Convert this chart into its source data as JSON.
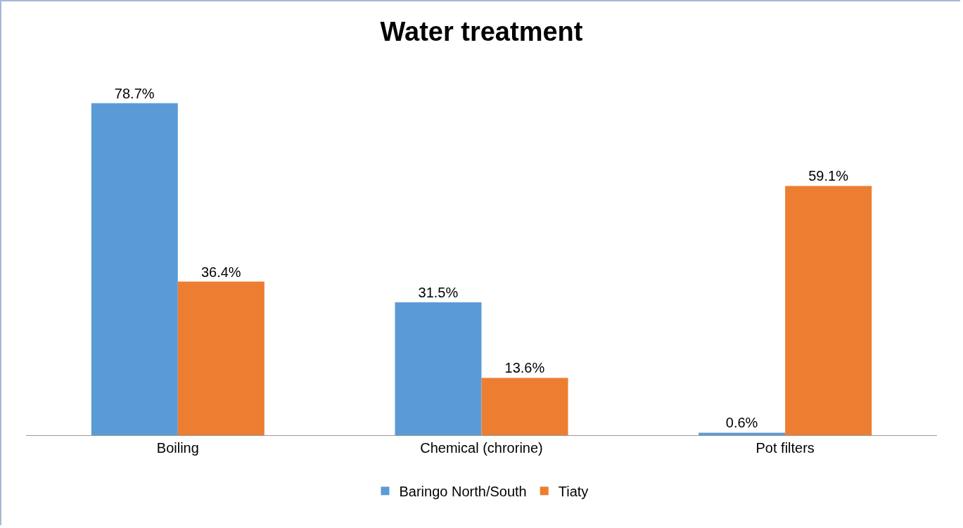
{
  "chart_data": {
    "type": "bar",
    "title": "Water treatment",
    "categories": [
      "Boiling",
      "Chemical (chrorine)",
      "Pot filters"
    ],
    "series": [
      {
        "name": "Baringo North/South",
        "color": "#5b9bd5",
        "values": [
          78.7,
          31.5,
          0.6
        ],
        "value_labels": [
          "78.7%",
          "31.5%",
          "0.6%"
        ]
      },
      {
        "name": "Tiaty",
        "color": "#ed7d31",
        "values": [
          36.4,
          13.6,
          59.1
        ],
        "value_labels": [
          "36.4%",
          "13.6%",
          "59.1%"
        ]
      }
    ],
    "legend": "bottom"
  }
}
